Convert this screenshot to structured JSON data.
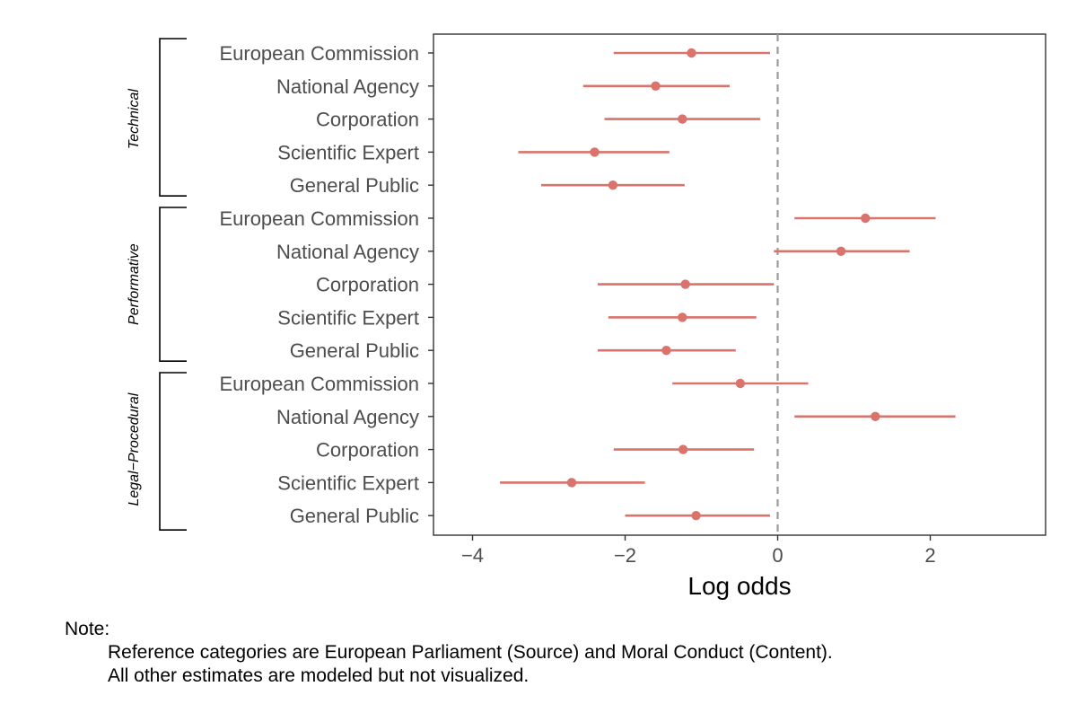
{
  "chart_data": {
    "type": "forest",
    "xlabel": "Log odds",
    "xlim": [
      -4.3,
      3.3
    ],
    "xticks": [
      -4,
      -2,
      0,
      2
    ],
    "xtick_labels": [
      "−4",
      "−2",
      "0",
      "2"
    ],
    "reference_line": 0,
    "point_color": "#D9736B",
    "groups": [
      {
        "name": "Technical",
        "rows": [
          {
            "label": "European Commission",
            "estimate": -1.13,
            "lower": -2.15,
            "upper": -0.1
          },
          {
            "label": "National Agency",
            "estimate": -1.6,
            "lower": -2.55,
            "upper": -0.63
          },
          {
            "label": "Corporation",
            "estimate": -1.25,
            "lower": -2.27,
            "upper": -0.23
          },
          {
            "label": "Scientific Expert",
            "estimate": -2.4,
            "lower": -3.4,
            "upper": -1.42
          },
          {
            "label": "General Public",
            "estimate": -2.16,
            "lower": -3.1,
            "upper": -1.22
          }
        ]
      },
      {
        "name": "Performative",
        "rows": [
          {
            "label": "European Commission",
            "estimate": 1.15,
            "lower": 0.22,
            "upper": 2.07
          },
          {
            "label": "National Agency",
            "estimate": 0.83,
            "lower": -0.05,
            "upper": 1.73
          },
          {
            "label": "Corporation",
            "estimate": -1.21,
            "lower": -2.36,
            "upper": -0.05
          },
          {
            "label": "Scientific Expert",
            "estimate": -1.25,
            "lower": -2.22,
            "upper": -0.28
          },
          {
            "label": "General Public",
            "estimate": -1.46,
            "lower": -2.36,
            "upper": -0.55
          }
        ]
      },
      {
        "name": "Legal−Procedural",
        "rows": [
          {
            "label": "European Commission",
            "estimate": -0.49,
            "lower": -1.38,
            "upper": 0.4
          },
          {
            "label": "National Agency",
            "estimate": 1.28,
            "lower": 0.22,
            "upper": 2.33
          },
          {
            "label": "Corporation",
            "estimate": -1.24,
            "lower": -2.15,
            "upper": -0.31
          },
          {
            "label": "Scientific Expert",
            "estimate": -2.7,
            "lower": -3.64,
            "upper": -1.74
          },
          {
            "label": "General Public",
            "estimate": -1.07,
            "lower": -2.0,
            "upper": -0.1
          }
        ]
      }
    ]
  },
  "note": {
    "heading": "Note:",
    "line1": "Reference categories are European Parliament (Source) and Moral Conduct (Content).",
    "line2": "All other estimates are modeled but not visualized."
  }
}
